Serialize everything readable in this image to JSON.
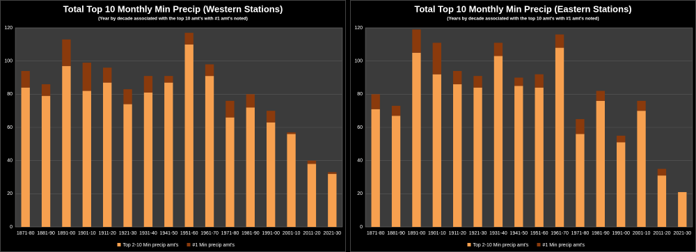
{
  "chart_data": [
    {
      "type": "bar",
      "stacked": true,
      "title": "Total Top 10 Monthly Min Precip (Western Stations)",
      "subtitle": "(Year by decade associated  with the top 10 amt's with #1 amt's noted)",
      "categories": [
        "1871-80",
        "1881-90",
        "1891-00",
        "1901-10",
        "1911-20",
        "1921-30",
        "1931-40",
        "1941-50",
        "1951-60",
        "1961-70",
        "1971-80",
        "1981-90",
        "1991-00",
        "2001-10",
        "2011-20",
        "2021-30"
      ],
      "series": [
        {
          "name": "Top 2-10 Min precip amt's",
          "color": "#f7a04f",
          "values": [
            84,
            79,
            97,
            82,
            87,
            74,
            81,
            87,
            110,
            91,
            66,
            72,
            63,
            56,
            38,
            32
          ]
        },
        {
          "name": "#1 Min precip amt's",
          "color": "#8a3a0c",
          "values": [
            10,
            7,
            16,
            17,
            9,
            9,
            10,
            4,
            7,
            7,
            10,
            8,
            7,
            1,
            2,
            1
          ]
        }
      ],
      "ylim": [
        0,
        120
      ],
      "yticks": [
        0,
        20,
        40,
        60,
        80,
        100,
        120
      ],
      "grid": true,
      "legend": "bottom"
    },
    {
      "type": "bar",
      "stacked": true,
      "title": "Total Top 10 Monthly Min Precip (Eastern Stations)",
      "subtitle": "(Years by decade associated  with the top 10 amt's with #1 amt's noted)",
      "categories": [
        "1871-80",
        "1881-90",
        "1891-00",
        "1901-10",
        "1911-20",
        "1921-30",
        "1931-40",
        "1941-50",
        "1951-60",
        "1961-70",
        "1971-80",
        "1981-90",
        "1991-00",
        "2001-10",
        "2011-20",
        "2021-30"
      ],
      "series": [
        {
          "name": "Top 2-10 Min precip amt's",
          "color": "#f7a04f",
          "values": [
            71,
            67,
            105,
            92,
            86,
            84,
            103,
            85,
            84,
            108,
            56,
            76,
            51,
            70,
            31,
            21
          ]
        },
        {
          "name": "#1 Min precip amt's",
          "color": "#8a3a0c",
          "values": [
            9,
            6,
            14,
            19,
            8,
            7,
            8,
            5,
            8,
            8,
            9,
            6,
            4,
            6,
            4,
            0
          ]
        }
      ],
      "ylim": [
        0,
        120
      ],
      "yticks": [
        0,
        20,
        40,
        60,
        80,
        100,
        120
      ],
      "grid": true,
      "legend": "bottom"
    }
  ]
}
